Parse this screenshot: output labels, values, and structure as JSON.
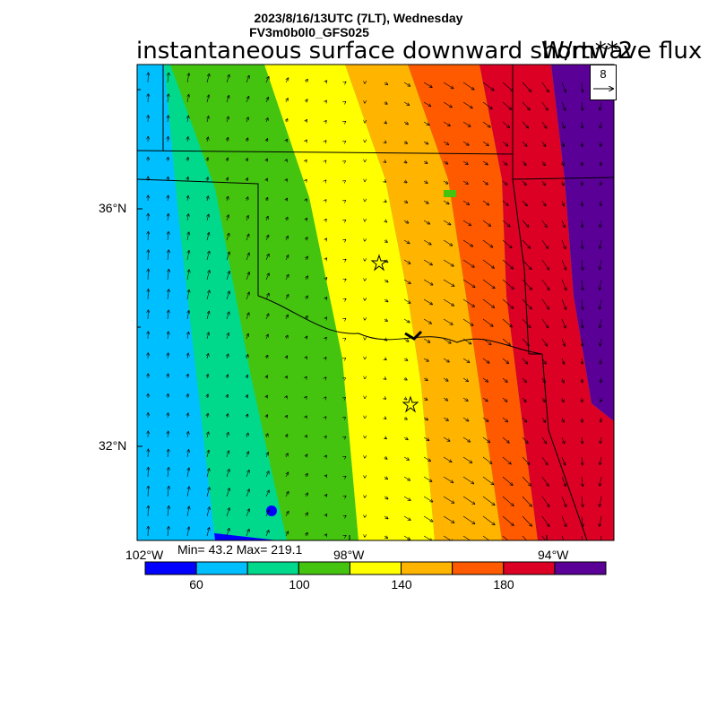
{
  "header": {
    "line1": "2023/8/16/13UTC (7LT), Wednesday",
    "line2": "FV3m0b0l0_GFS025",
    "title": "instantaneous surface downward shortwave flux",
    "units": "W/m**2"
  },
  "axes": {
    "lat_labels": [
      "36°N",
      "32°N"
    ],
    "lon_labels": [
      "102°W",
      "98°W",
      "94°W"
    ]
  },
  "stats": {
    "text": "Min= 43.2 Max= 219.1",
    "min": 43.2,
    "max": 219.1
  },
  "vector_reference": {
    "value": "8"
  },
  "colorbar": {
    "colors": [
      "#0000ff",
      "#00bfff",
      "#00d98c",
      "#44c40f",
      "#ffff00",
      "#ffb400",
      "#ff5a00",
      "#dc0025",
      "#5a0096"
    ],
    "tick_labels": [
      "60",
      "100",
      "140",
      "180"
    ]
  },
  "chart_data": {
    "type": "heatmap",
    "variable": "instantaneous surface downward shortwave flux",
    "units": "W/m**2",
    "levels": [
      60,
      80,
      100,
      120,
      140,
      160,
      180,
      200
    ],
    "min": 43.2,
    "max": 219.1,
    "gradient": "increasing west to east",
    "markers": [
      "star",
      "star"
    ]
  }
}
